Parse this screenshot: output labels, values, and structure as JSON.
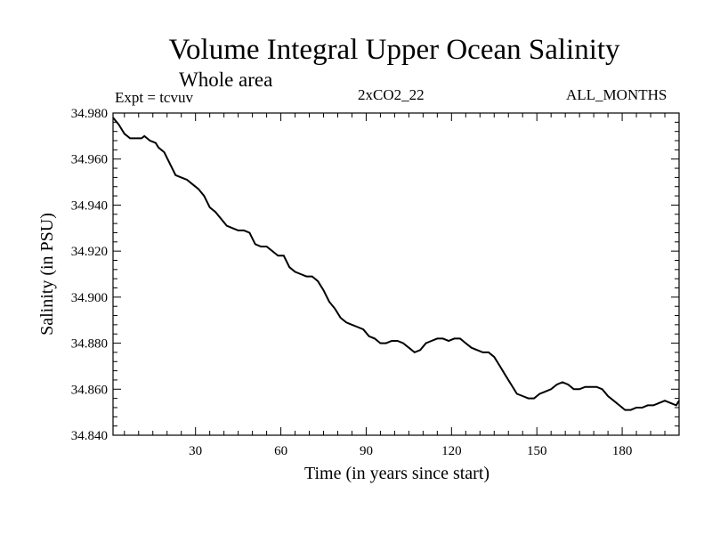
{
  "header": {
    "title": "Volume Integral Upper Ocean Salinity",
    "subtitle": "Whole area",
    "experiment": "Expt = tcvuv",
    "run": "2xCO2_22",
    "months": "ALL_MONTHS"
  },
  "chart_data": {
    "type": "line",
    "title": "Volume Integral Upper Ocean Salinity",
    "subtitle": "Whole area",
    "xlabel": "Time (in years since start)",
    "ylabel": "Salinity (in PSU)",
    "xlim": [
      1,
      200
    ],
    "ylim": [
      34.84,
      34.98
    ],
    "xticks": [
      "30",
      "60",
      "90",
      "120",
      "150",
      "180"
    ],
    "yticks": [
      "34.840",
      "34.860",
      "34.880",
      "34.900",
      "34.920",
      "34.940",
      "34.960",
      "34.980"
    ],
    "grid": false,
    "series": [
      {
        "x": [
          1,
          3,
          5,
          7,
          9,
          11,
          12,
          14,
          16,
          17,
          19,
          21,
          23,
          25,
          27,
          29,
          31,
          33,
          35,
          37,
          39,
          41,
          43,
          45,
          47,
          49,
          51,
          53,
          55,
          57,
          59,
          61,
          63,
          65,
          67,
          69,
          71,
          73,
          75,
          77,
          79,
          81,
          83,
          85,
          87,
          89,
          91,
          93,
          95,
          97,
          99,
          101,
          103,
          105,
          107,
          109,
          111,
          113,
          115,
          117,
          119,
          121,
          123,
          125,
          127,
          129,
          131,
          133,
          135,
          137,
          139,
          141,
          143,
          145,
          147,
          149,
          151,
          153,
          155,
          157,
          159,
          161,
          163,
          165,
          167,
          169,
          171,
          173,
          175,
          177,
          179,
          181,
          183,
          185,
          187,
          189,
          191,
          193,
          195,
          197,
          199,
          200
        ],
        "values": [
          34.978,
          34.975,
          34.971,
          34.969,
          34.969,
          34.969,
          34.97,
          34.968,
          34.967,
          34.965,
          34.963,
          34.958,
          34.953,
          34.952,
          34.951,
          34.949,
          34.947,
          34.944,
          34.939,
          34.937,
          34.934,
          34.931,
          34.93,
          34.929,
          34.929,
          34.928,
          34.923,
          34.922,
          34.922,
          34.92,
          34.918,
          34.918,
          34.913,
          34.911,
          34.91,
          34.909,
          34.909,
          34.907,
          34.903,
          34.898,
          34.895,
          34.891,
          34.889,
          34.888,
          34.887,
          34.886,
          34.883,
          34.882,
          34.88,
          34.88,
          34.881,
          34.881,
          34.88,
          34.878,
          34.876,
          34.877,
          34.88,
          34.881,
          34.882,
          34.882,
          34.881,
          34.882,
          34.882,
          34.88,
          34.878,
          34.877,
          34.876,
          34.876,
          34.874,
          34.87,
          34.866,
          34.862,
          34.858,
          34.857,
          34.856,
          34.856,
          34.858,
          34.859,
          34.86,
          34.862,
          34.863,
          34.862,
          34.86,
          34.86,
          34.861,
          34.861,
          34.861,
          34.86,
          34.857,
          34.855,
          34.853,
          34.851,
          34.851,
          34.852,
          34.852,
          34.853,
          34.853,
          34.854,
          34.855,
          34.854,
          34.853,
          34.855
        ]
      }
    ]
  }
}
